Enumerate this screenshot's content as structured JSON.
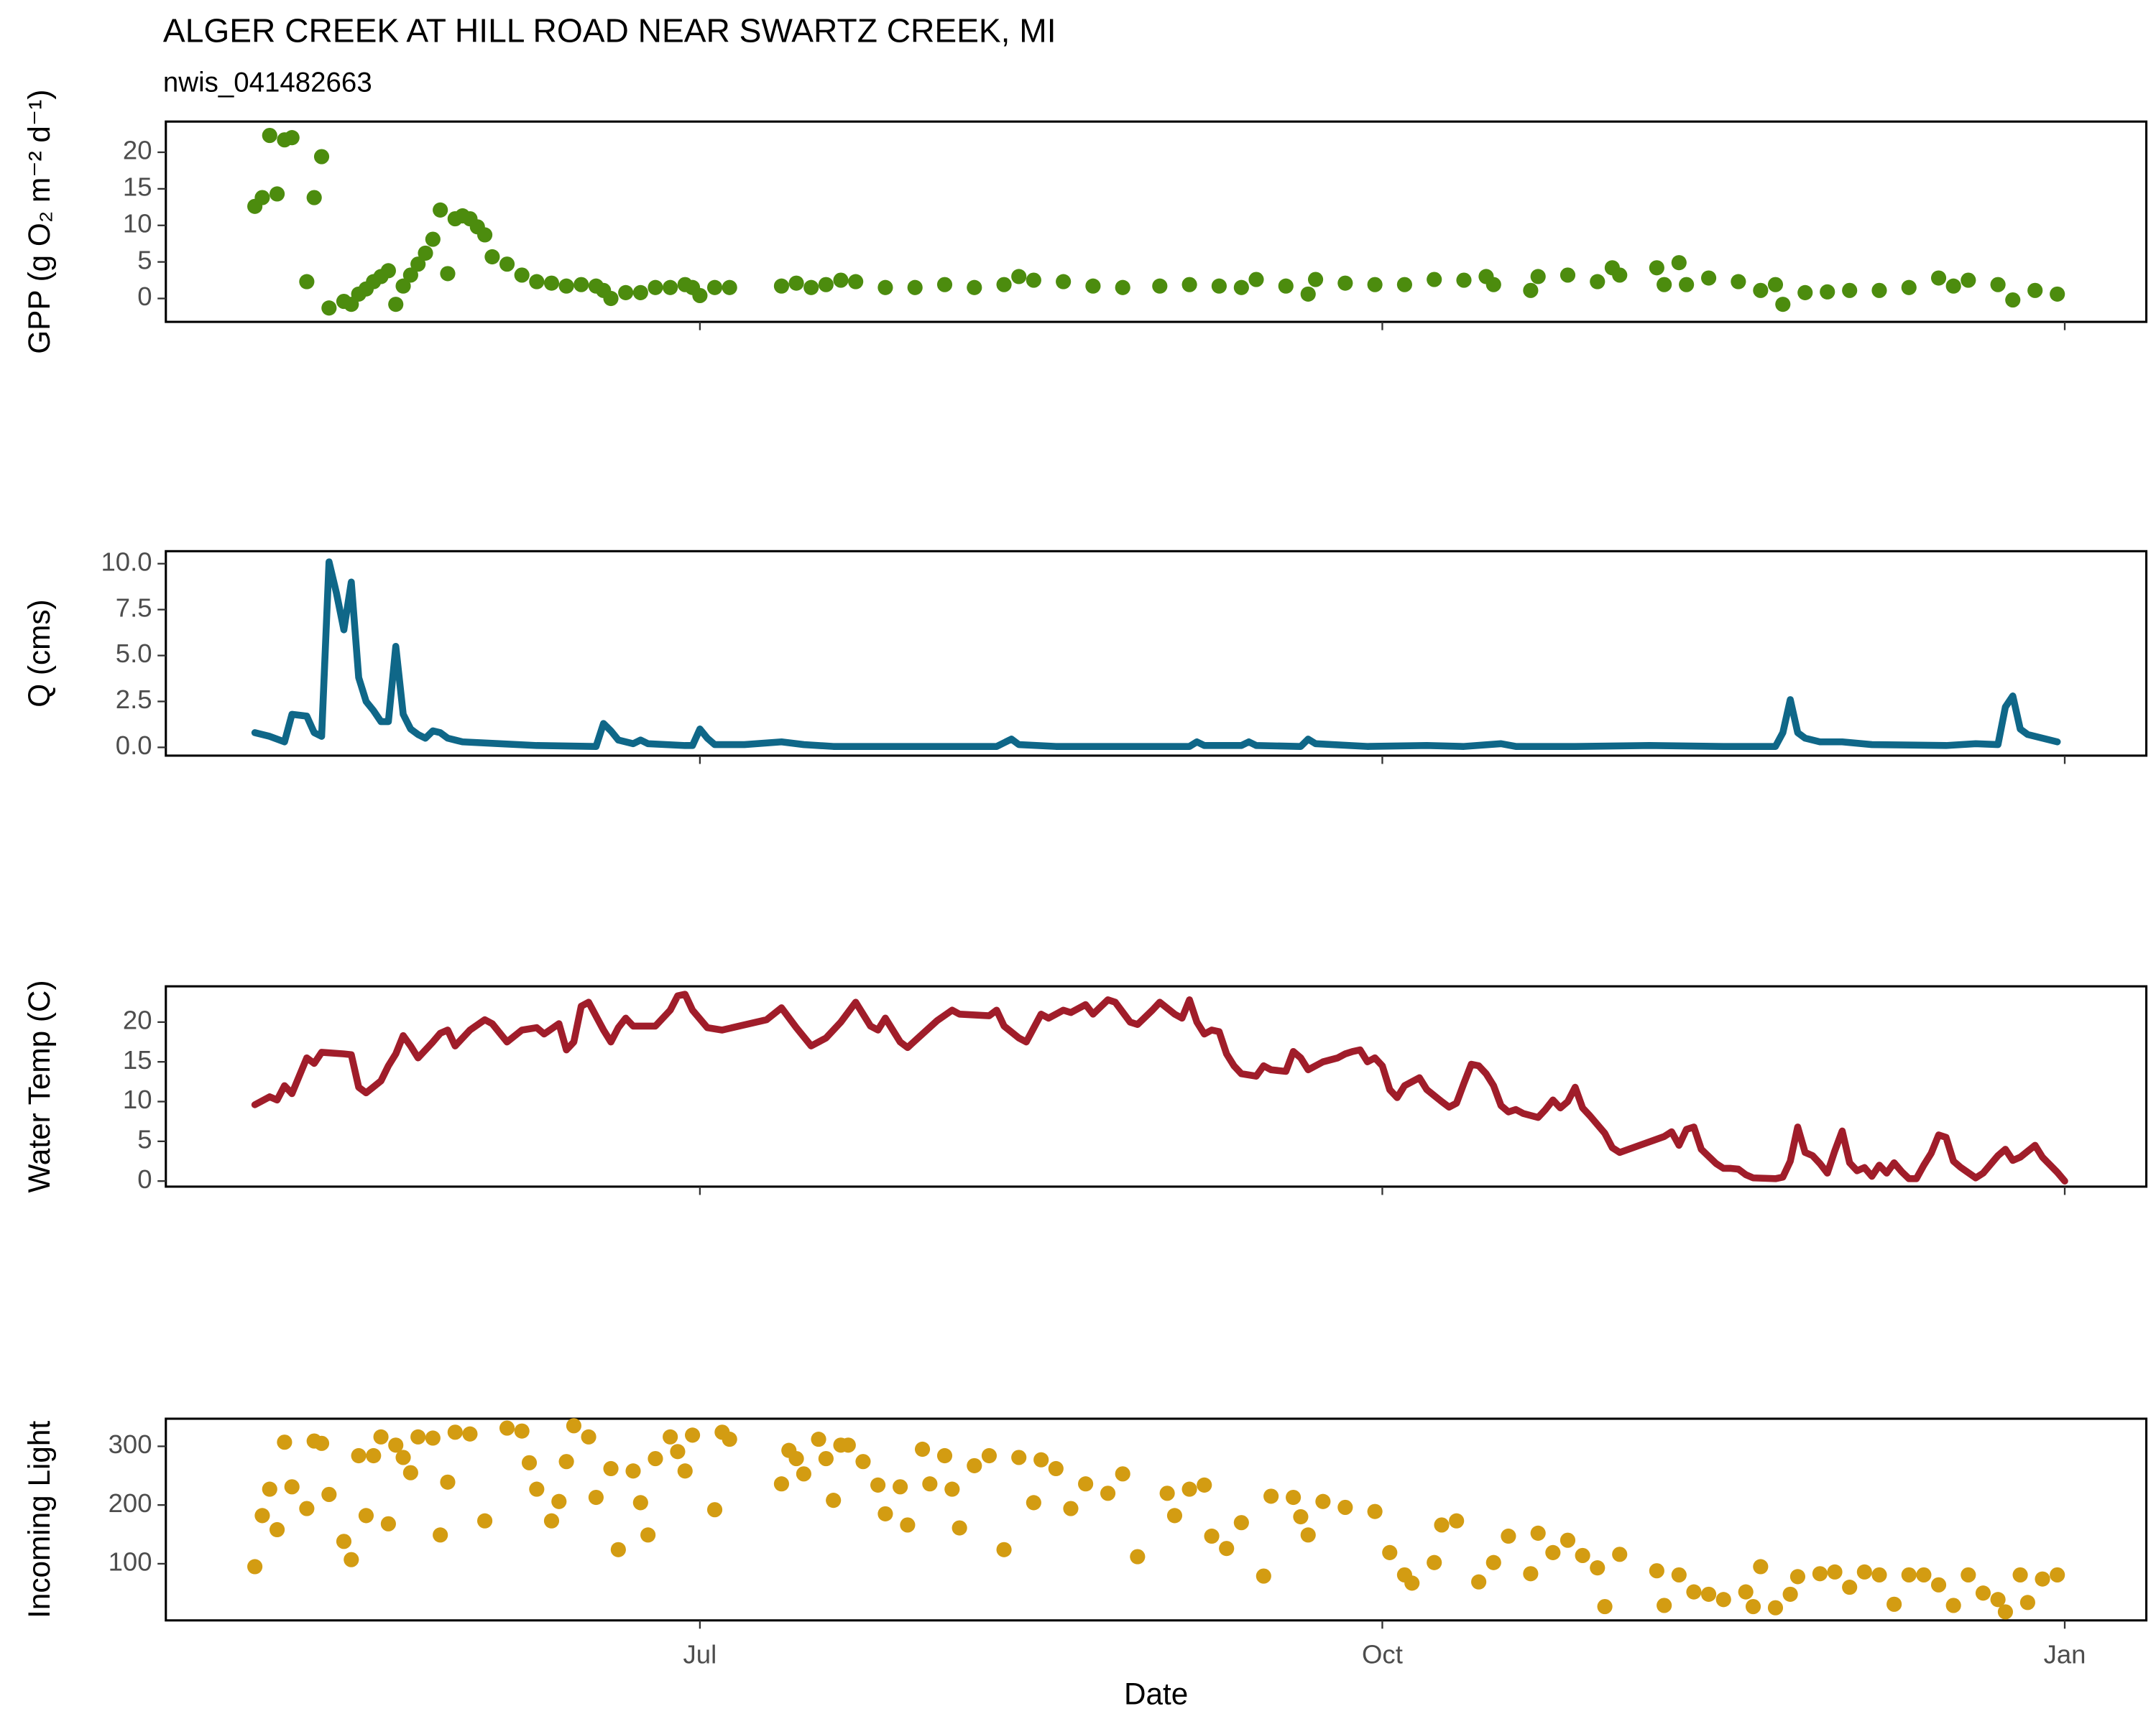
{
  "chart_data": [
    {
      "type": "scatter",
      "title": "ALGER CREEK AT HILL ROAD NEAR SWARTZ CREEK, MI",
      "subtitle": "nwis_041482663",
      "ylabel": "GPP (g  O₂ m⁻² d⁻¹)",
      "color": "#4c8c0e",
      "xlim": [
        110,
        377
      ],
      "ylim": [
        -3.2,
        24.2
      ],
      "yticks": [
        0,
        5,
        10,
        15,
        20
      ],
      "x": [
        122,
        123,
        124,
        125,
        126,
        127,
        129,
        130,
        131,
        132,
        134,
        135,
        136,
        137,
        138,
        139,
        140,
        141,
        142,
        143,
        144,
        145,
        146,
        147,
        148,
        149,
        150,
        151,
        152,
        153,
        154,
        156,
        158,
        160,
        162,
        164,
        166,
        168,
        169,
        170,
        172,
        174,
        176,
        178,
        180,
        181,
        182,
        184,
        186,
        193,
        195,
        197,
        199,
        201,
        203,
        207,
        211,
        215,
        219,
        223,
        225,
        227,
        231,
        235,
        239,
        244,
        248,
        252,
        255,
        257,
        261,
        264,
        265,
        269,
        273,
        277,
        281,
        285,
        288,
        289,
        294,
        295,
        299,
        303,
        305,
        306,
        311,
        312,
        314,
        315,
        318,
        322,
        325,
        327,
        328,
        331,
        334,
        337,
        341,
        345,
        349,
        351,
        353,
        357,
        359,
        362,
        365
      ],
      "values": [
        12.6,
        13.8,
        22.3,
        14.3,
        21.7,
        22,
        2.3,
        13.8,
        19.4,
        -1.3,
        -0.4,
        -0.8,
        0.6,
        1.3,
        2.3,
        3,
        3.8,
        -0.8,
        1.7,
        3.2,
        4.7,
        6.2,
        8.1,
        12.1,
        3.4,
        10.9,
        11.3,
        10.9,
        9.8,
        8.7,
        5.7,
        4.7,
        3.2,
        2.3,
        2.1,
        1.7,
        1.9,
        1.7,
        1.1,
        0,
        0.8,
        0.8,
        1.5,
        1.5,
        1.9,
        1.5,
        0.4,
        1.5,
        1.5,
        1.7,
        2.1,
        1.5,
        1.9,
        2.5,
        2.3,
        1.5,
        1.5,
        1.9,
        1.5,
        1.9,
        3,
        2.5,
        2.3,
        1.7,
        1.5,
        1.7,
        1.9,
        1.7,
        1.5,
        2.6,
        1.7,
        0.6,
        2.6,
        2.1,
        1.9,
        1.9,
        2.6,
        2.5,
        3,
        1.9,
        1.1,
        3,
        3.2,
        2.3,
        4.2,
        3.2,
        4.2,
        1.9,
        4.9,
        1.9,
        2.8,
        2.3,
        1.1,
        1.9,
        -0.8,
        0.8,
        0.9,
        1.1,
        1.1,
        1.5,
        2.8,
        1.7,
        2.5,
        1.9,
        -0.2,
        1.1,
        0.6
      ]
    },
    {
      "type": "line",
      "ylabel": "Q (cms)",
      "color": "#0f6788",
      "xlim": [
        110,
        377
      ],
      "ylim": [
        -0.45,
        10.68
      ],
      "yticks": [
        {
          "value": 0,
          "label": "0.0"
        },
        2.5,
        {
          "value": 5,
          "label": "5.0"
        },
        7.5,
        {
          "value": 10,
          "label": "10.0"
        }
      ],
      "x": [
        122,
        124,
        126,
        127,
        129,
        130,
        131,
        132,
        133,
        134,
        135,
        136,
        137,
        138,
        139,
        140,
        141,
        142,
        143,
        144,
        145,
        146,
        147,
        148,
        150,
        155,
        160,
        168,
        169,
        170,
        171,
        173,
        174,
        175,
        180,
        181,
        182,
        183,
        184,
        188,
        193,
        196,
        200,
        210,
        222,
        224,
        225,
        230,
        240,
        248,
        249,
        250,
        255,
        256,
        257,
        263,
        264,
        265,
        272,
        280,
        285,
        290,
        292,
        300,
        310,
        320,
        327,
        328,
        329,
        330,
        331,
        333,
        336,
        340,
        350,
        354,
        357,
        358,
        359,
        360,
        361,
        363,
        365
      ],
      "values": [
        0.8,
        0.6,
        0.3,
        1.8,
        1.7,
        0.8,
        0.6,
        10.1,
        8.4,
        6.4,
        9,
        3.8,
        2.5,
        2,
        1.4,
        1.4,
        5.5,
        1.8,
        1,
        0.7,
        0.5,
        0.9,
        0.8,
        0.5,
        0.3,
        0.2,
        0.1,
        0.05,
        1.3,
        0.9,
        0.4,
        0.2,
        0.4,
        0.2,
        0.1,
        0.1,
        1,
        0.5,
        0.15,
        0.15,
        0.3,
        0.15,
        0.05,
        0.05,
        0.05,
        0.45,
        0.15,
        0.05,
        0.05,
        0.05,
        0.3,
        0.1,
        0.1,
        0.3,
        0.1,
        0.05,
        0.45,
        0.2,
        0.05,
        0.1,
        0.05,
        0.2,
        0.05,
        0.05,
        0.1,
        0.05,
        0.05,
        0.8,
        2.6,
        0.8,
        0.5,
        0.3,
        0.3,
        0.15,
        0.1,
        0.2,
        0.15,
        2.2,
        2.8,
        1,
        0.7,
        0.5,
        0.3
      ]
    },
    {
      "type": "line",
      "ylabel": "Water Temp (C)",
      "color": "#a01d2a",
      "xlim": [
        110,
        377
      ],
      "ylim": [
        -0.7,
        24.5
      ],
      "yticks": [
        0,
        5,
        10,
        15,
        20
      ],
      "x": [
        122,
        124,
        125,
        126,
        127,
        129,
        130,
        131,
        134,
        135,
        136,
        137,
        139,
        140,
        141,
        142,
        143,
        144,
        146,
        147,
        148,
        149,
        150,
        151,
        153,
        154,
        156,
        158,
        160,
        161,
        163,
        164,
        165,
        166,
        167,
        169,
        170,
        171,
        172,
        173,
        175,
        176,
        178,
        179,
        180,
        181,
        183,
        185,
        191,
        193,
        195,
        197,
        199,
        201,
        203,
        205,
        206,
        207,
        209,
        210,
        212,
        214,
        216,
        217,
        221,
        222,
        223,
        225,
        226,
        228,
        229,
        231,
        232,
        234,
        235,
        237,
        238,
        240,
        241,
        243,
        244,
        246,
        247,
        248,
        249,
        250,
        251,
        252,
        253,
        254,
        255,
        257,
        258,
        259,
        261,
        262,
        263,
        264,
        266,
        268,
        269,
        270,
        271,
        272,
        273,
        274,
        275,
        276,
        277,
        279,
        280,
        282,
        283,
        284,
        285,
        286,
        287,
        288,
        289,
        290,
        291,
        292,
        293,
        295,
        296,
        297,
        298,
        299,
        300,
        301,
        302,
        304,
        305,
        306,
        312,
        313,
        314,
        315,
        316,
        317,
        319,
        320,
        321,
        322,
        323,
        324,
        327,
        328,
        329,
        330,
        331,
        332,
        333,
        334,
        335,
        336,
        337,
        338,
        339,
        340,
        341,
        342,
        343,
        344,
        345,
        346,
        347,
        348,
        349,
        350,
        351,
        352,
        354,
        355,
        357,
        358,
        359,
        360,
        362,
        363,
        365,
        366
      ],
      "values": [
        9.6,
        10.6,
        10.2,
        12,
        11,
        15.5,
        14.8,
        16.2,
        16,
        15.9,
        11.8,
        11.1,
        12.6,
        14.5,
        16,
        18.3,
        17,
        15.5,
        17.5,
        18.6,
        19,
        17,
        18,
        19,
        20.3,
        19.8,
        17.5,
        19,
        19.3,
        18.5,
        19.8,
        16.5,
        17.5,
        22,
        22.5,
        19,
        17.5,
        19.3,
        20.5,
        19.5,
        19.5,
        19.5,
        21.5,
        23.3,
        23.5,
        21.5,
        19.3,
        19,
        20.3,
        21.8,
        19.3,
        17,
        18,
        20,
        22.5,
        19.5,
        19,
        20.5,
        17.5,
        16.8,
        18.5,
        20.2,
        21.5,
        21,
        20.8,
        21.5,
        19.5,
        18,
        17.5,
        21,
        20.5,
        21.5,
        21.2,
        22.2,
        21,
        22.8,
        22.5,
        20,
        19.7,
        21.5,
        22.5,
        21,
        20.5,
        22.8,
        20,
        18.5,
        19,
        18.8,
        16,
        14.5,
        13.5,
        13.2,
        14.5,
        14,
        13.8,
        16.3,
        15.5,
        14,
        15,
        15.5,
        16,
        16.3,
        16.5,
        15,
        15.5,
        14.5,
        11.5,
        10.5,
        12,
        13,
        11.5,
        10,
        9.3,
        9.8,
        12.3,
        14.7,
        14.5,
        13.5,
        12,
        9.5,
        8.7,
        9,
        8.5,
        8,
        9,
        10.2,
        9.2,
        10,
        11.8,
        9.2,
        8.2,
        6,
        4.2,
        3.6,
        5.6,
        6.2,
        4.5,
        6.5,
        6.8,
        4,
        2.2,
        1.6,
        1.6,
        1.5,
        0.8,
        0.4,
        0.3,
        0.5,
        2.5,
        6.8,
        3.6,
        3.2,
        2.2,
        1,
        3.8,
        6.3,
        2.3,
        1.3,
        1.7,
        0.6,
        2,
        1,
        2.3,
        1.2,
        0.3,
        0.3,
        2,
        3.5,
        5.8,
        5.5,
        2.5,
        1.7,
        0.4,
        1,
        3.2,
        4,
        2.6,
        3,
        4.5,
        3,
        1.1,
        0
      ]
    },
    {
      "type": "scatter",
      "ylabel": "Incoming Light",
      "xlabel": "Date",
      "color": "#d39c12",
      "xlim": [
        110,
        377
      ],
      "ylim": [
        3.5,
        347
      ],
      "yticks": [
        100,
        200,
        300
      ],
      "xticks": [
        {
          "value": 182,
          "label": "Jul"
        },
        {
          "value": 274,
          "label": "Oct"
        },
        {
          "value": 366,
          "label": "Jan"
        }
      ],
      "x": [
        122,
        123,
        124,
        125,
        126,
        127,
        129,
        130,
        131,
        132,
        134,
        135,
        136,
        137,
        138,
        139,
        140,
        141,
        142,
        143,
        144,
        146,
        147,
        148,
        149,
        151,
        153,
        156,
        158,
        159,
        160,
        162,
        163,
        164,
        165,
        167,
        168,
        170,
        171,
        173,
        174,
        175,
        176,
        178,
        179,
        180,
        181,
        184,
        185,
        186,
        193,
        194,
        195,
        196,
        198,
        199,
        200,
        201,
        202,
        204,
        206,
        207,
        209,
        210,
        212,
        213,
        215,
        216,
        217,
        219,
        221,
        223,
        225,
        227,
        228,
        230,
        232,
        234,
        237,
        239,
        241,
        245,
        246,
        248,
        250,
        251,
        253,
        255,
        258,
        259,
        262,
        263,
        264,
        266,
        269,
        273,
        275,
        277,
        278,
        281,
        282,
        284,
        287,
        289,
        291,
        294,
        295,
        297,
        299,
        301,
        303,
        304,
        306,
        311,
        312,
        314,
        316,
        318,
        320,
        323,
        324,
        325,
        327,
        329,
        330,
        333,
        335,
        337,
        339,
        341,
        343,
        345,
        347,
        349,
        351,
        353,
        355,
        357,
        358,
        360,
        361,
        363,
        365
      ],
      "values": [
        95,
        182,
        227,
        158,
        307,
        231,
        194,
        309,
        305,
        218,
        138,
        107,
        284,
        182,
        284,
        316,
        168,
        302,
        281,
        255,
        316,
        314,
        149,
        239,
        324,
        321,
        173,
        331,
        326,
        272,
        227,
        173,
        206,
        274,
        335,
        316,
        213,
        262,
        124,
        258,
        204,
        149,
        279,
        316,
        291,
        258,
        319,
        192,
        324,
        312,
        236,
        293,
        279,
        253,
        312,
        279,
        208,
        302,
        302,
        274,
        234,
        185,
        231,
        166,
        295,
        236,
        284,
        227,
        161,
        267,
        284,
        124,
        281,
        204,
        277,
        262,
        194,
        236,
        220,
        253,
        112,
        220,
        182,
        227,
        234,
        147,
        126,
        170,
        79,
        215,
        213,
        180,
        149,
        206,
        196,
        189,
        119,
        81,
        67,
        102,
        166,
        173,
        69,
        102,
        147,
        83,
        152,
        119,
        140,
        114,
        93,
        27,
        116,
        88,
        29,
        81,
        52,
        48,
        39,
        52,
        27,
        95,
        25,
        48,
        78,
        83,
        86,
        60,
        86,
        81,
        31,
        81,
        81,
        64,
        29,
        81,
        50,
        39,
        18,
        81,
        34,
        74,
        81
      ]
    }
  ]
}
